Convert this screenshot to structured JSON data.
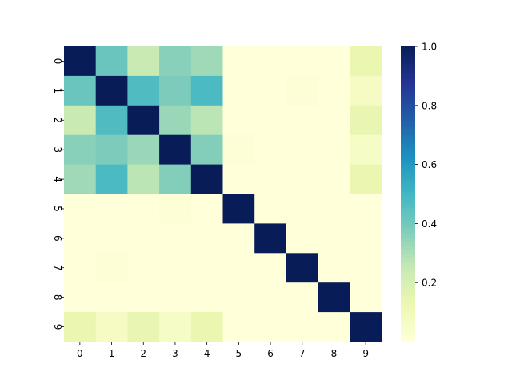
{
  "chart_data": {
    "type": "heatmap",
    "title": "",
    "xlabel": "",
    "ylabel": "",
    "x_labels": [
      "0",
      "1",
      "2",
      "3",
      "4",
      "5",
      "6",
      "7",
      "8",
      "9"
    ],
    "y_labels": [
      "0",
      "1",
      "2",
      "3",
      "4",
      "5",
      "6",
      "7",
      "8",
      "9"
    ],
    "values": [
      [
        1.0,
        0.42,
        0.24,
        0.36,
        0.32,
        0.0,
        0.0,
        0.0,
        0.0,
        0.13
      ],
      [
        0.42,
        1.0,
        0.47,
        0.38,
        0.48,
        0.0,
        0.0,
        0.01,
        0.0,
        0.07
      ],
      [
        0.24,
        0.47,
        1.0,
        0.33,
        0.27,
        0.0,
        0.0,
        0.0,
        0.0,
        0.14
      ],
      [
        0.36,
        0.38,
        0.33,
        1.0,
        0.37,
        0.01,
        0.0,
        0.0,
        0.0,
        0.06
      ],
      [
        0.32,
        0.48,
        0.27,
        0.37,
        1.0,
        0.0,
        0.0,
        0.0,
        0.0,
        0.13
      ],
      [
        0.0,
        0.0,
        0.0,
        0.01,
        0.0,
        1.0,
        0.0,
        0.0,
        0.0,
        0.0
      ],
      [
        0.0,
        0.0,
        0.0,
        0.0,
        0.0,
        0.0,
        1.0,
        0.0,
        0.0,
        0.0
      ],
      [
        0.0,
        0.01,
        0.0,
        0.0,
        0.0,
        0.0,
        0.0,
        1.0,
        0.0,
        0.0
      ],
      [
        0.0,
        0.0,
        0.0,
        0.0,
        0.0,
        0.0,
        0.0,
        0.0,
        1.0,
        0.0
      ],
      [
        0.13,
        0.07,
        0.14,
        0.06,
        0.13,
        0.0,
        0.0,
        0.0,
        0.0,
        1.0
      ]
    ],
    "colorbar": {
      "colormap": "YlGnBu",
      "vmin": 0.0,
      "vmax": 1.0,
      "ticks": [
        0.2,
        0.4,
        0.6,
        0.8,
        1.0
      ],
      "tick_labels": [
        "0.2",
        "0.4",
        "0.6",
        "0.8",
        "1.0"
      ]
    },
    "grid": false,
    "legend": "colorbar-right"
  }
}
